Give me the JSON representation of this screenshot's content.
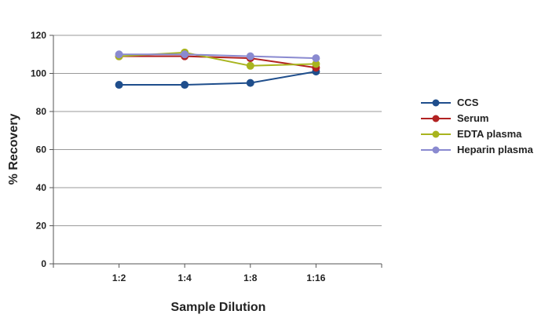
{
  "chart_data": {
    "type": "line",
    "categories": [
      "1:2",
      "1:4",
      "1:8",
      "1:16"
    ],
    "series": [
      {
        "name": "CCS",
        "values": [
          94,
          94,
          95,
          101
        ],
        "color": "#1f4e8c"
      },
      {
        "name": "Serum",
        "values": [
          109,
          109,
          108,
          103
        ],
        "color": "#b22222"
      },
      {
        "name": "EDTA plasma",
        "values": [
          109,
          111,
          104,
          105
        ],
        "color": "#a8b41e"
      },
      {
        "name": "Heparin plasma",
        "values": [
          110,
          110,
          109,
          108
        ],
        "color": "#8a8ad0"
      }
    ],
    "xlabel": "Sample Dilution",
    "ylabel": "% Recovery",
    "ylim": [
      0,
      120
    ],
    "yticks": [
      0,
      20,
      40,
      60,
      80,
      100,
      120
    ],
    "grid": true,
    "legend": "right"
  }
}
